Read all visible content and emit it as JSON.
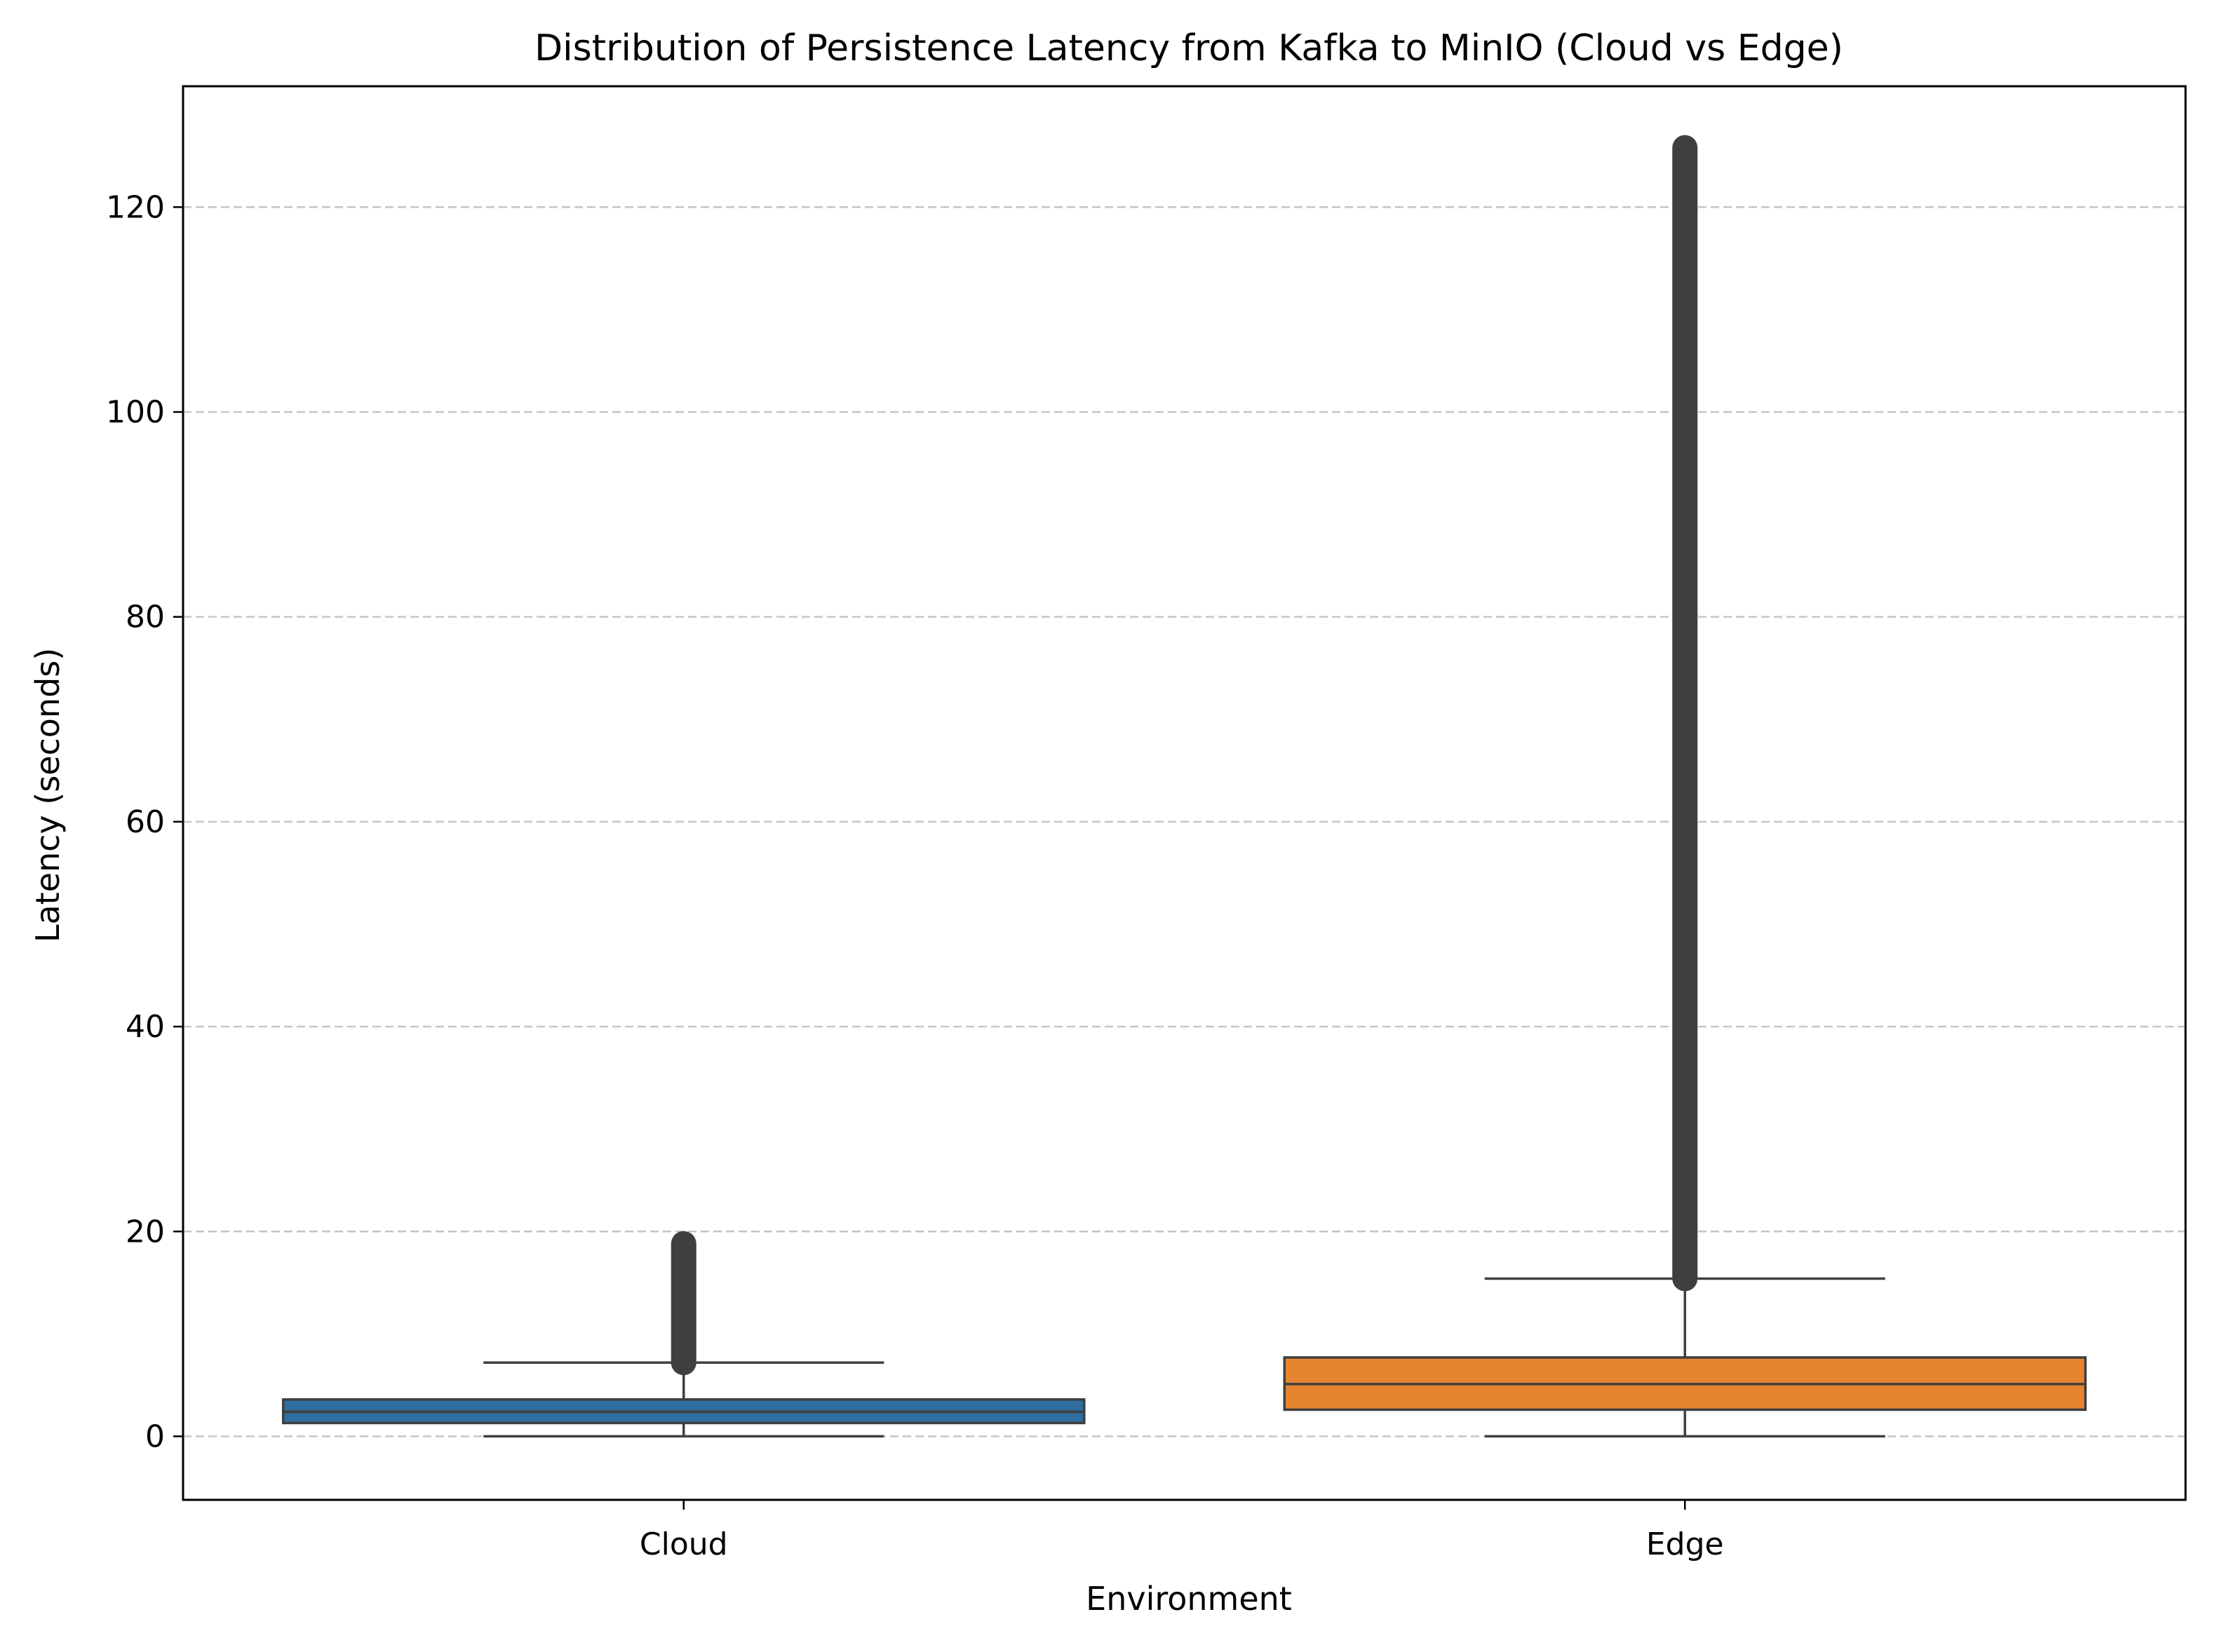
{
  "chart_data": {
    "type": "box",
    "title": "Distribution of Persistence Latency from Kafka to MinIO (Cloud vs Edge)",
    "xlabel": "Environment",
    "ylabel": "Latency (seconds)",
    "categories": [
      "Cloud",
      "Edge"
    ],
    "ylim": [
      -6.2,
      131.8
    ],
    "yticks": [
      0,
      20,
      40,
      60,
      80,
      100,
      120
    ],
    "grid": "y, dashed",
    "boxes": [
      {
        "category": "Cloud",
        "color": "#2e6e9e",
        "whisker_low": 0.0,
        "q1": 1.3,
        "median": 2.4,
        "q3": 3.6,
        "whisker_high": 7.2,
        "outliers_range": [
          7.2,
          18.8
        ]
      },
      {
        "category": "Edge",
        "color": "#e5842f",
        "whisker_low": 0.0,
        "q1": 2.6,
        "median": 5.1,
        "q3": 7.7,
        "whisker_high": 15.4,
        "outliers_range": [
          15.4,
          125.8
        ]
      }
    ],
    "colors": {
      "grid": "#c4c4c4",
      "line": "#3f3f3f",
      "axis": "#000000"
    }
  }
}
